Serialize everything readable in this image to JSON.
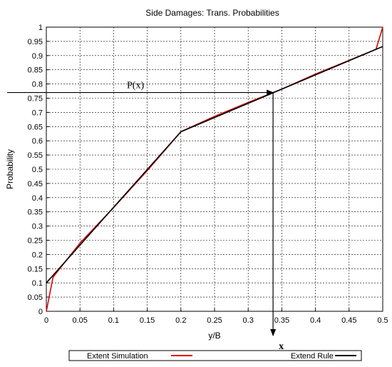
{
  "chart_data": {
    "type": "line",
    "title": "Side Damages: Trans. Probabilities",
    "xlabel": "y/B",
    "ylabel": "Probability",
    "xlim": [
      0,
      0.5
    ],
    "ylim": [
      0,
      1
    ],
    "x_ticks": [
      "0",
      "0.05",
      "0.1",
      "0.15",
      "0.2",
      "0.25",
      "0.3",
      "0.35",
      "0.4",
      "0.45",
      "0.5"
    ],
    "y_ticks": [
      "0",
      "0.05",
      "0.1",
      "0.15",
      "0.2",
      "0.25",
      "0.3",
      "0.35",
      "0.4",
      "0.45",
      "0.5",
      "0.55",
      "0.6",
      "0.65",
      "0.7",
      "0.75",
      "0.8",
      "0.85",
      "0.9",
      "0.95",
      "1"
    ],
    "grid": true,
    "legend_placement": "bottom",
    "series": [
      {
        "name": "Extent Simulation",
        "color": "#e00000",
        "points": [
          [
            0,
            0
          ],
          [
            0.01,
            0.12
          ],
          [
            0.05,
            0.24
          ],
          [
            0.1,
            0.365
          ],
          [
            0.15,
            0.495
          ],
          [
            0.2,
            0.632
          ],
          [
            0.25,
            0.686
          ],
          [
            0.3,
            0.735
          ],
          [
            0.35,
            0.782
          ],
          [
            0.4,
            0.835
          ],
          [
            0.45,
            0.883
          ],
          [
            0.49,
            0.922
          ],
          [
            0.5,
            1.0
          ]
        ]
      },
      {
        "name": "Extend Rule",
        "color": "#000000",
        "points": [
          [
            0,
            0.1
          ],
          [
            0.2,
            0.632
          ],
          [
            0.5,
            0.932
          ]
        ]
      }
    ],
    "annotations": {
      "p_label": "P(x)",
      "x_label": "x",
      "p_value": 0.77,
      "x_value": 0.337
    }
  }
}
